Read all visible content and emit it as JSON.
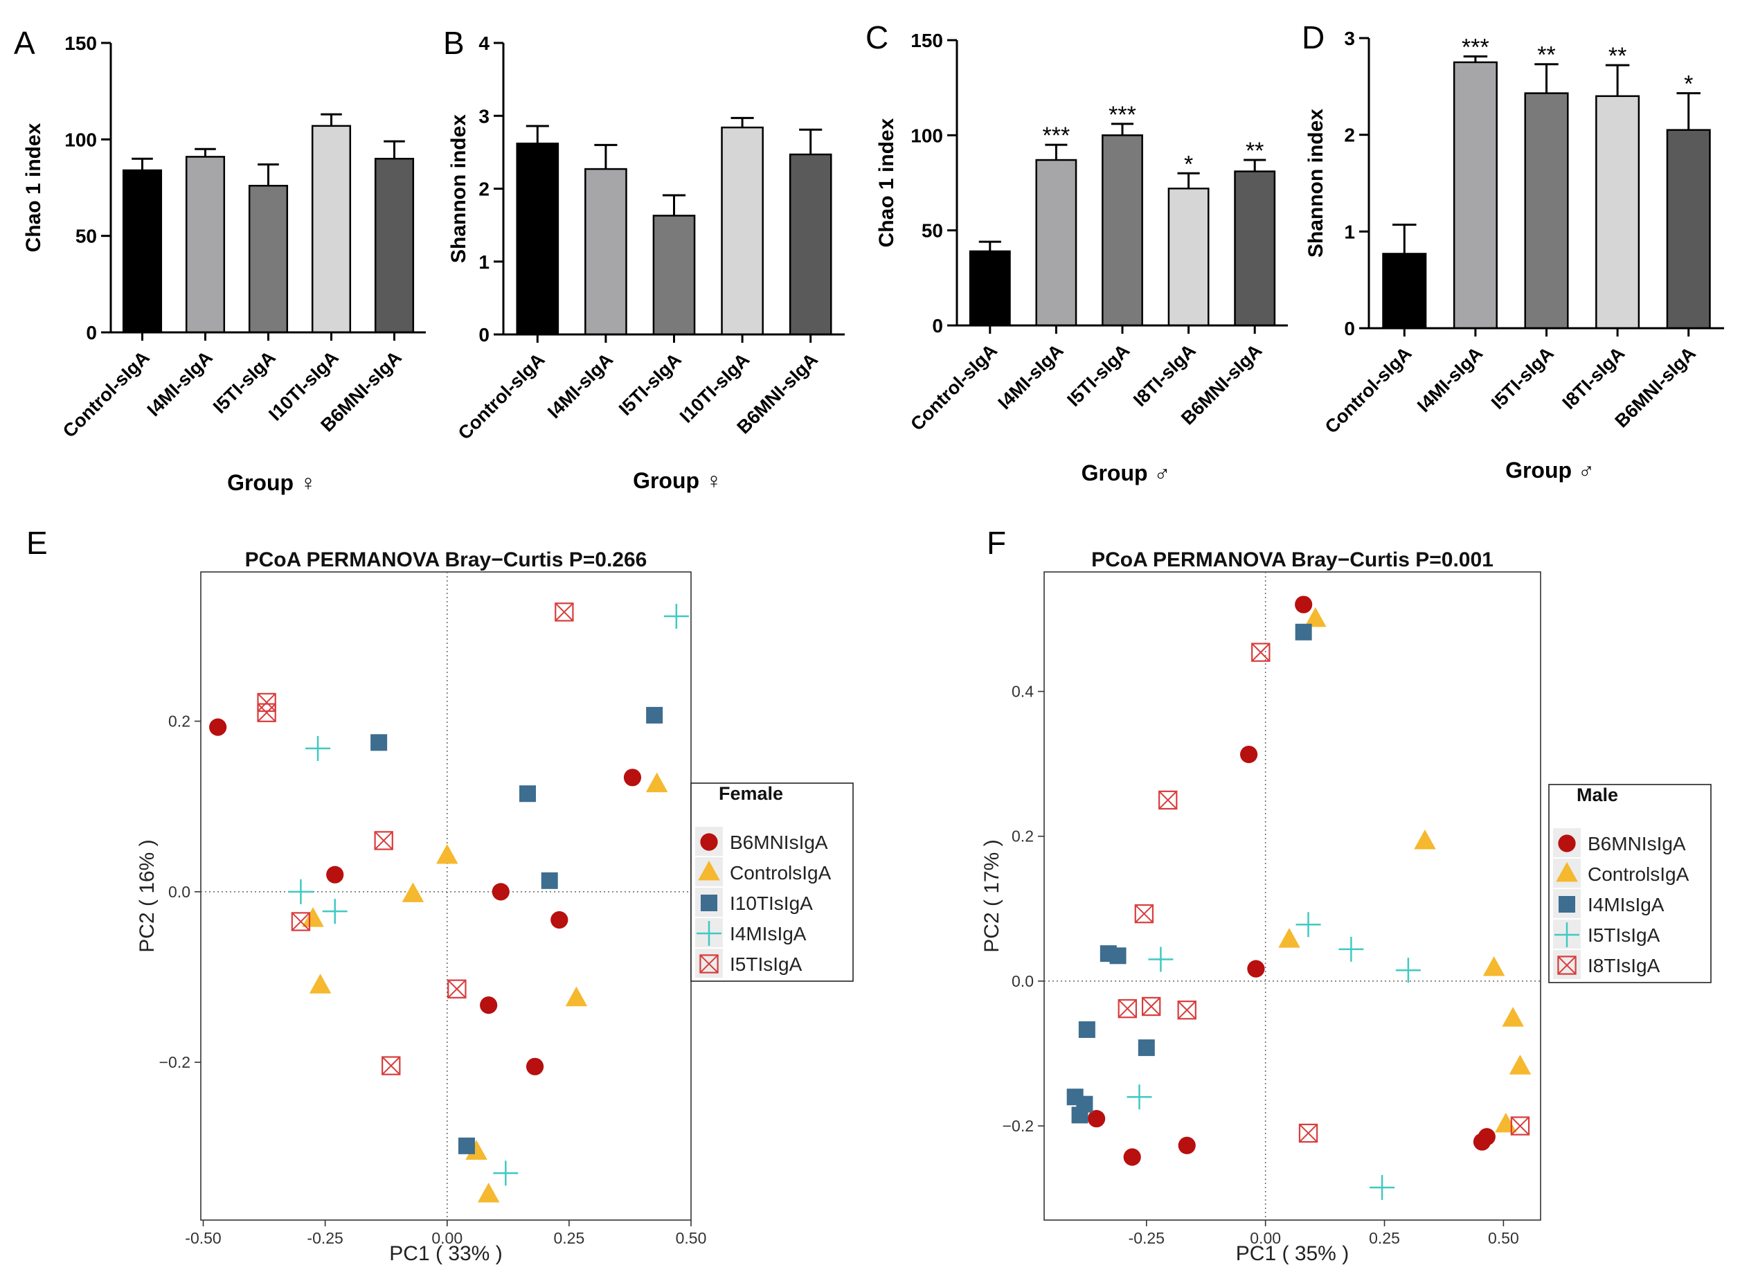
{
  "figure": {
    "panel_labels": [
      "A",
      "B",
      "C",
      "D",
      "E",
      "F"
    ]
  },
  "chart_data": [
    {
      "panel": "A",
      "type": "bar",
      "categories": [
        "Control-sIgA",
        "I4MI-sIgA",
        "I5TI-sIgA",
        "I10TI-sIgA",
        "B6MNI-sIgA"
      ],
      "values": [
        84,
        91,
        76,
        107,
        90
      ],
      "errors": [
        6,
        4,
        11,
        6,
        9
      ],
      "colors": [
        "#000000",
        "#a6a6a9",
        "#7a7a7a",
        "#d6d6d6",
        "#5a5a5a"
      ],
      "significance": [
        "",
        "",
        "",
        "",
        ""
      ],
      "title": "",
      "xlabel": "Group ♀",
      "ylabel": "Chao 1 index",
      "ylim": [
        0,
        150
      ],
      "yticks": [
        0,
        50,
        100,
        150
      ]
    },
    {
      "panel": "B",
      "type": "bar",
      "categories": [
        "Control-sIgA",
        "I4MI-sIgA",
        "I5TI-sIgA",
        "I10TI-sIgA",
        "B6MNI-sIgA"
      ],
      "values": [
        2.62,
        2.27,
        1.63,
        2.84,
        2.47
      ],
      "errors": [
        0.24,
        0.33,
        0.28,
        0.13,
        0.34
      ],
      "colors": [
        "#000000",
        "#a6a6a9",
        "#7a7a7a",
        "#d6d6d6",
        "#5a5a5a"
      ],
      "significance": [
        "",
        "",
        "",
        "",
        ""
      ],
      "title": "",
      "xlabel": "Group ♀",
      "ylabel": "Shannon index",
      "ylim": [
        0,
        4
      ],
      "yticks": [
        0,
        1,
        2,
        3,
        4
      ]
    },
    {
      "panel": "C",
      "type": "bar",
      "categories": [
        "Control-sIgA",
        "I4MI-sIgA",
        "I5TI-sIgA",
        "I8TI-sIgA",
        "B6MNI-sIgA"
      ],
      "values": [
        39,
        87,
        100,
        72,
        81
      ],
      "errors": [
        5,
        8,
        6,
        8,
        6
      ],
      "colors": [
        "#000000",
        "#a6a6a9",
        "#7a7a7a",
        "#d6d6d6",
        "#5a5a5a"
      ],
      "significance": [
        "",
        "***",
        "***",
        "*",
        "**"
      ],
      "title": "",
      "xlabel": "Group ♂",
      "ylabel": "Chao 1 index",
      "ylim": [
        0,
        150
      ],
      "yticks": [
        0,
        50,
        100,
        150
      ]
    },
    {
      "panel": "D",
      "type": "bar",
      "categories": [
        "Control-sIgA",
        "I4MI-sIgA",
        "I5TI-sIgA",
        "I8TI-sIgA",
        "B6MNI-sIgA"
      ],
      "values": [
        0.77,
        2.75,
        2.43,
        2.4,
        2.05
      ],
      "errors": [
        0.3,
        0.06,
        0.3,
        0.32,
        0.38
      ],
      "colors": [
        "#000000",
        "#a6a6a9",
        "#7a7a7a",
        "#d6d6d6",
        "#5a5a5a"
      ],
      "significance": [
        "",
        "***",
        "**",
        "**",
        "*"
      ],
      "title": "",
      "xlabel": "Group ♂",
      "ylabel": "Shannon index",
      "ylim": [
        0,
        3
      ],
      "yticks": [
        0,
        1,
        2,
        3
      ]
    },
    {
      "panel": "E",
      "type": "scatter",
      "title": "PCoA PERMANOVA Bray−Curtis P=0.266",
      "xlabel": "PC1 ( 33% )",
      "ylabel": "PC2 ( 16% )",
      "xlim": [
        -0.505,
        0.5
      ],
      "ylim": [
        -0.385,
        0.375
      ],
      "xticks": [
        -0.5,
        -0.25,
        0.0,
        0.25,
        0.5
      ],
      "xtick_labels": [
        "-0.50",
        "-0.25",
        "0.00",
        "0.25",
        "0.50"
      ],
      "yticks": [
        -0.2,
        0.0,
        0.2
      ],
      "ytick_labels": [
        "−0.2",
        "0.0",
        "0.2"
      ],
      "legend_title": "Female",
      "series": [
        {
          "name": "B6MNIsIgA",
          "marker": "circle",
          "color": "#b80f0f",
          "x": [
            -0.47,
            -0.23,
            0.11,
            0.23,
            0.38,
            0.085,
            0.18
          ],
          "y": [
            0.193,
            0.02,
            0.0,
            -0.033,
            0.134,
            -0.133,
            -0.205
          ]
        },
        {
          "name": "ControlsIgA",
          "marker": "triangle",
          "color": "#f5b82e",
          "x": [
            -0.275,
            -0.26,
            -0.07,
            0.0,
            0.43,
            0.265,
            0.06,
            0.085
          ],
          "y": [
            -0.032,
            -0.11,
            -0.003,
            0.042,
            0.126,
            -0.125,
            -0.305,
            -0.355
          ]
        },
        {
          "name": "I10TIsIgA",
          "marker": "square",
          "color": "#3d6d8f",
          "x": [
            -0.14,
            0.165,
            0.21,
            0.425,
            0.04
          ],
          "y": [
            0.175,
            0.115,
            0.013,
            0.207,
            -0.298
          ]
        },
        {
          "name": "I4MIsIgA",
          "marker": "plus",
          "color": "#3fc9c3",
          "x": [
            -0.265,
            -0.3,
            -0.23,
            0.12,
            0.47
          ],
          "y": [
            0.168,
            0.0,
            -0.023,
            -0.33,
            0.323
          ]
        },
        {
          "name": "I5TIsIgA",
          "marker": "boxx",
          "color": "#d93c3c",
          "x": [
            -0.37,
            -0.37,
            -0.13,
            -0.3,
            0.02,
            -0.115,
            0.24
          ],
          "y": [
            0.222,
            0.21,
            0.06,
            -0.035,
            -0.114,
            -0.204,
            0.328
          ]
        }
      ]
    },
    {
      "panel": "F",
      "type": "scatter",
      "title": "PCoA PERMANOVA Bray−Curtis P=0.001",
      "xlabel": "PC1 ( 35% )",
      "ylabel": "PC2 ( 17% )",
      "xlim": [
        -0.465,
        0.578
      ],
      "ylim": [
        -0.33,
        0.565
      ],
      "xticks": [
        -0.25,
        0.0,
        0.25,
        0.5
      ],
      "xtick_labels": [
        "-0.25",
        "0.00",
        "0.25",
        "0.50"
      ],
      "yticks": [
        -0.2,
        0.0,
        0.2,
        0.4
      ],
      "ytick_labels": [
        "−0.2",
        "0.0",
        "0.2",
        "0.4"
      ],
      "legend_title": "Male",
      "series": [
        {
          "name": "B6MNIsIgA",
          "marker": "circle",
          "color": "#b80f0f",
          "x": [
            0.08,
            -0.035,
            -0.02,
            -0.355,
            -0.28,
            -0.165,
            0.465,
            0.455
          ],
          "y": [
            0.52,
            0.313,
            0.017,
            -0.19,
            -0.243,
            -0.227,
            -0.215,
            -0.222
          ]
        },
        {
          "name": "ControlsIgA",
          "marker": "triangle",
          "color": "#f5b82e",
          "x": [
            0.105,
            0.335,
            0.05,
            0.48,
            0.52,
            0.535,
            0.505
          ],
          "y": [
            0.5,
            0.193,
            0.057,
            0.018,
            -0.052,
            -0.118,
            -0.198
          ]
        },
        {
          "name": "I4MIsIgA",
          "marker": "square",
          "color": "#3d6d8f",
          "x": [
            0.08,
            -0.33,
            -0.31,
            -0.375,
            -0.25,
            -0.4,
            -0.38,
            -0.39
          ],
          "y": [
            0.482,
            0.038,
            0.035,
            -0.067,
            -0.092,
            -0.16,
            -0.17,
            -0.185
          ]
        },
        {
          "name": "I5TIsIgA",
          "marker": "plus",
          "color": "#3fc9c3",
          "x": [
            0.09,
            0.18,
            0.3,
            -0.22,
            -0.265,
            0.245
          ],
          "y": [
            0.078,
            0.044,
            0.015,
            0.03,
            -0.16,
            -0.285
          ]
        },
        {
          "name": "I8TIsIgA",
          "marker": "boxx",
          "color": "#d93c3c",
          "x": [
            -0.01,
            -0.205,
            -0.255,
            -0.29,
            -0.24,
            -0.165,
            0.09,
            0.535
          ],
          "y": [
            0.454,
            0.25,
            0.093,
            -0.038,
            -0.035,
            -0.04,
            -0.21,
            -0.2
          ]
        }
      ]
    }
  ]
}
